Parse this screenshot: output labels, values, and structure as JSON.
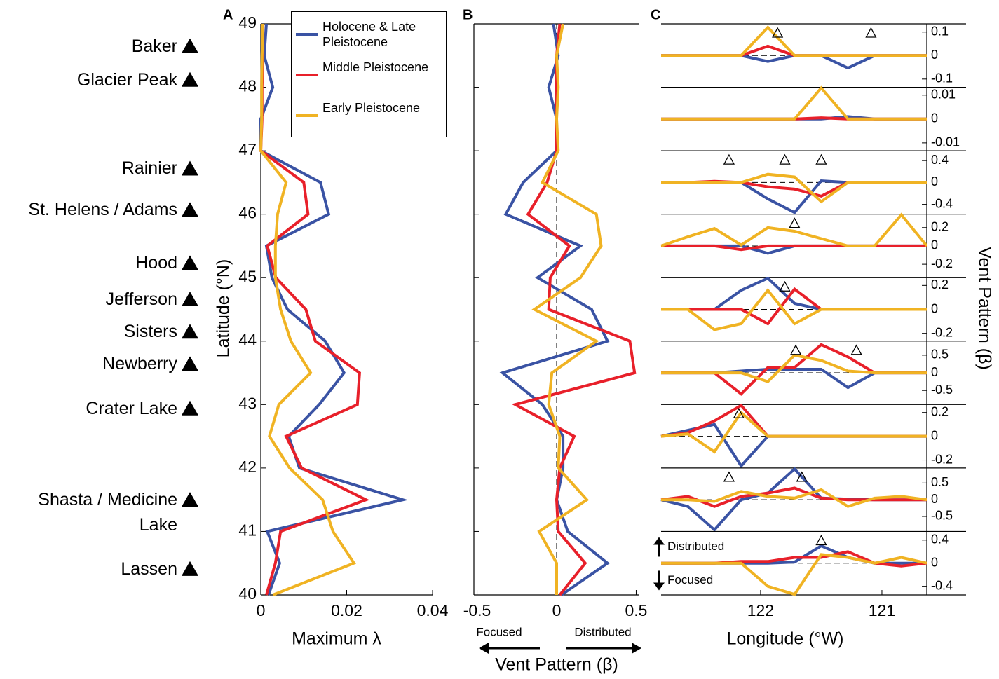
{
  "chart_data": [
    {
      "panel": "A",
      "type": "line",
      "orientation": "horizontal",
      "xlabel": "Maximum λ",
      "ylabel": "Latitude (°N)",
      "y": [
        49,
        48.5,
        48,
        47.5,
        47,
        46.5,
        46,
        45.5,
        45,
        44.5,
        44,
        43.5,
        43,
        42.5,
        42,
        41.5,
        41,
        40.5,
        40
      ],
      "xlim": [
        0,
        0.04
      ],
      "xticks": [
        0,
        0.02,
        0.04
      ],
      "ylim": [
        40,
        49
      ],
      "yticks": [
        40,
        41,
        42,
        43,
        44,
        45,
        46,
        47,
        48,
        49
      ],
      "legend": "upper right",
      "series": [
        {
          "name": "Holocene & Late Pleistocene",
          "color": "#3a53a4",
          "values": [
            0.0013,
            0.0008,
            0.0028,
            0,
            0,
            0.0139,
            0.0158,
            0.0013,
            0.0026,
            0.0062,
            0.015,
            0.0194,
            0.0136,
            0.0065,
            0.009,
            0.0331,
            0.0015,
            0.0044,
            0.0018
          ]
        },
        {
          "name": "Middle Pleistocene",
          "color": "#e8202a",
          "values": [
            0.0005,
            0.0005,
            0.0003,
            0.0003,
            0,
            0.01,
            0.011,
            0.0015,
            0.0035,
            0.0105,
            0.0127,
            0.023,
            0.0225,
            0.0059,
            0.0095,
            0.0245,
            0.0046,
            0.0034,
            0.0013
          ]
        },
        {
          "name": "Early Pleistocene",
          "color": "#f0b323",
          "values": [
            0.0005,
            0.0003,
            0.0002,
            0.0002,
            0,
            0.0059,
            0.0039,
            0.0034,
            0.0034,
            0.0046,
            0.007,
            0.0116,
            0.0042,
            0.002,
            0.0067,
            0.0144,
            0.0168,
            0.0217,
            0.0028
          ]
        }
      ],
      "annotations": [
        {
          "text": "Baker",
          "y": 48.65
        },
        {
          "text": "Glacier Peak",
          "y": 48.12
        },
        {
          "text": "Rainier",
          "y": 46.72
        },
        {
          "text": "St. Helens / Adams",
          "y": 46.07
        },
        {
          "text": "Hood",
          "y": 45.23
        },
        {
          "text": "Jefferson",
          "y": 44.66
        },
        {
          "text": "Sisters",
          "y": 44.15
        },
        {
          "text": "Newberry",
          "y": 43.64
        },
        {
          "text": "Crater Lake",
          "y": 42.94
        },
        {
          "text": "Shasta / Medicine Lake",
          "y": 41.5
        },
        {
          "text": "Lassen",
          "y": 40.41
        }
      ]
    },
    {
      "panel": "B",
      "type": "line",
      "orientation": "horizontal",
      "xlabel": "Vent Pattern (β)",
      "y": [
        49,
        48.5,
        48,
        47.5,
        47,
        46.5,
        46,
        45.5,
        45,
        44.5,
        44,
        43.5,
        43,
        42.5,
        42,
        41.5,
        41,
        40.5,
        40
      ],
      "xlim": [
        -0.52,
        0.52
      ],
      "xticks": [
        -0.5,
        0,
        0.5
      ],
      "ylim": [
        40,
        49
      ],
      "yticks": [
        40,
        41,
        42,
        43,
        44,
        45,
        46,
        47,
        48,
        49
      ],
      "ytick_labels": false,
      "zero_line": true,
      "series": [
        {
          "color": "#3a53a4",
          "values": [
            -0.02,
            0.01,
            -0.05,
            0,
            0,
            -0.21,
            -0.32,
            0.15,
            -0.12,
            0.22,
            0.32,
            -0.34,
            -0.09,
            0.04,
            0.04,
            0,
            0.07,
            0.32,
            0.03
          ]
        },
        {
          "color": "#e8202a",
          "values": [
            0.02,
            0,
            0,
            0,
            0,
            -0.06,
            -0.18,
            0.08,
            -0.04,
            -0.05,
            0.46,
            0.49,
            -0.26,
            0.11,
            0.02,
            0,
            0.01,
            0.18,
            0.02
          ]
        },
        {
          "color": "#f0b323",
          "values": [
            0.04,
            0,
            0.01,
            0,
            0.01,
            -0.09,
            0.25,
            0.28,
            0.15,
            -0.14,
            0.25,
            -0.03,
            -0.05,
            0.02,
            0.01,
            0.19,
            -0.11,
            0,
            0
          ]
        }
      ],
      "arrows": [
        {
          "text": "Focused",
          "direction": "left"
        },
        {
          "text": "Distributed",
          "direction": "right"
        }
      ]
    },
    {
      "panel": "C",
      "type": "line",
      "xlabel": "Longitude (°W)",
      "ylabel": "Vent Pattern (β)",
      "x": [
        122.82,
        122.6,
        122.38,
        122.16,
        121.94,
        121.72,
        121.5,
        121.28,
        121.06,
        120.84,
        120.63
      ],
      "xlim": [
        122.82,
        120.63
      ],
      "xticks": [
        122,
        121
      ],
      "zero_line": true,
      "arrows": [
        {
          "text": "Distributed",
          "direction": "up"
        },
        {
          "text": "Focused",
          "direction": "down"
        }
      ],
      "subplots": [
        {
          "ylim": [
            -0.135,
            0.135
          ],
          "yticks": [
            -0.1,
            0,
            0.1
          ],
          "markers": [
            121.86,
            121.09
          ],
          "series": [
            {
              "color": "#3a53a4",
              "values": [
                0,
                0,
                0,
                0,
                -0.025,
                0,
                0,
                -0.053,
                0,
                0,
                0
              ]
            },
            {
              "color": "#e8202a",
              "values": [
                0,
                0,
                0,
                0,
                0.04,
                0,
                0,
                0,
                0,
                0,
                0
              ]
            },
            {
              "color": "#f0b323",
              "values": [
                0,
                0,
                0,
                0,
                0.12,
                0,
                0,
                0,
                0,
                0,
                0
              ]
            }
          ]
        },
        {
          "ylim": [
            -0.0133,
            0.0133
          ],
          "yticks": [
            -0.01,
            0,
            0.01
          ],
          "markers": [],
          "series": [
            {
              "color": "#3a53a4",
              "values": [
                0,
                0,
                0,
                0,
                0,
                0,
                0,
                0.001,
                0,
                0,
                0
              ]
            },
            {
              "color": "#e8202a",
              "values": [
                0,
                0,
                0,
                0,
                0,
                0,
                0.0005,
                0,
                0,
                0,
                0
              ]
            },
            {
              "color": "#f0b323",
              "values": [
                0,
                0,
                0,
                0,
                0,
                0,
                0.013,
                0,
                0,
                0,
                0
              ]
            }
          ]
        },
        {
          "ylim": [
            -0.58,
            0.58
          ],
          "yticks": [
            -0.4,
            0,
            0.4
          ],
          "markers": [
            122.26,
            121.8,
            121.5
          ],
          "series": [
            {
              "color": "#3a53a4",
              "values": [
                0,
                0,
                0,
                0,
                -0.3,
                -0.55,
                0.03,
                0,
                0,
                0,
                0
              ]
            },
            {
              "color": "#e8202a",
              "values": [
                0,
                0,
                0.02,
                0,
                -0.08,
                -0.12,
                -0.25,
                0,
                0,
                0,
                0
              ]
            },
            {
              "color": "#f0b323",
              "values": [
                0,
                0,
                0,
                0,
                0.15,
                0.1,
                -0.35,
                0,
                0,
                0,
                0
              ]
            }
          ]
        },
        {
          "ylim": [
            -0.346,
            0.346
          ],
          "yticks": [
            -0.2,
            0,
            0.2
          ],
          "markers": [
            121.72
          ],
          "series": [
            {
              "color": "#3a53a4",
              "values": [
                0,
                0,
                0,
                0,
                -0.08,
                0,
                0,
                0,
                0,
                0,
                0
              ]
            },
            {
              "color": "#e8202a",
              "values": [
                0,
                0,
                0,
                -0.04,
                0,
                0,
                0,
                0,
                0,
                0,
                0
              ]
            },
            {
              "color": "#f0b323",
              "values": [
                0,
                0.1,
                0.19,
                0.01,
                0.2,
                0.16,
                0.08,
                0,
                0,
                0.34,
                0
              ]
            }
          ]
        },
        {
          "ylim": [
            -0.265,
            0.265
          ],
          "yticks": [
            -0.2,
            0,
            0.2
          ],
          "markers": [
            121.8
          ],
          "series": [
            {
              "color": "#3a53a4",
              "values": [
                0,
                0,
                0,
                0.16,
                0.26,
                0.05,
                0,
                0,
                0,
                0,
                0
              ]
            },
            {
              "color": "#e8202a",
              "values": [
                0,
                0,
                0,
                0,
                -0.12,
                0.17,
                0,
                0,
                0,
                0,
                0
              ]
            },
            {
              "color": "#f0b323",
              "values": [
                0,
                0,
                -0.17,
                -0.12,
                0.16,
                -0.12,
                0,
                0,
                0,
                0,
                0
              ]
            }
          ]
        },
        {
          "ylim": [
            -0.9,
            0.9
          ],
          "yticks": [
            -0.5,
            0,
            0.5
          ],
          "markers": [
            121.71,
            121.21
          ],
          "series": [
            {
              "color": "#3a53a4",
              "values": [
                0,
                0,
                0,
                0.05,
                0.1,
                0.1,
                0.1,
                -0.42,
                0,
                0,
                0
              ]
            },
            {
              "color": "#e8202a",
              "values": [
                0,
                0,
                0,
                -0.6,
                0.15,
                0.15,
                0.8,
                0.45,
                0,
                0,
                0
              ]
            },
            {
              "color": "#f0b323",
              "values": [
                0,
                0,
                0,
                0,
                -0.25,
                0.5,
                0.35,
                0.05,
                0,
                0,
                0
              ]
            }
          ]
        },
        {
          "ylim": [
            -0.267,
            0.267
          ],
          "yticks": [
            -0.2,
            0,
            0.2
          ],
          "markers": [
            122.18
          ],
          "series": [
            {
              "color": "#3a53a4",
              "values": [
                0,
                0.05,
                0.1,
                -0.25,
                0,
                0,
                0,
                0,
                0,
                0,
                0
              ]
            },
            {
              "color": "#e8202a",
              "values": [
                0,
                0.03,
                0.13,
                0.26,
                0,
                0,
                0,
                0,
                0,
                0,
                0
              ]
            },
            {
              "color": "#f0b323",
              "values": [
                0,
                0.02,
                -0.13,
                0.2,
                0,
                0,
                0,
                0,
                0,
                0,
                0
              ]
            }
          ]
        },
        {
          "ylim": [
            -0.95,
            0.95
          ],
          "yticks": [
            -0.5,
            0,
            0.5
          ],
          "markers": [
            122.26,
            121.66
          ],
          "series": [
            {
              "color": "#3a53a4",
              "values": [
                0,
                -0.2,
                -0.9,
                0,
                0.2,
                0.92,
                0.05,
                0.02,
                0,
                0,
                0
              ]
            },
            {
              "color": "#e8202a",
              "values": [
                0,
                0.1,
                -0.2,
                0.1,
                0.2,
                0.35,
                0.05,
                0,
                0,
                0,
                0
              ]
            },
            {
              "color": "#f0b323",
              "values": [
                0,
                0,
                -0.05,
                0.25,
                0.1,
                0.05,
                0.3,
                -0.2,
                0.05,
                0.1,
                0
              ]
            }
          ]
        },
        {
          "ylim": [
            -0.55,
            0.55
          ],
          "yticks": [
            -0.4,
            0,
            0.4
          ],
          "markers": [
            121.5
          ],
          "series": [
            {
              "color": "#3a53a4",
              "values": [
                0,
                0,
                0,
                0,
                0,
                0.02,
                0.3,
                0.1,
                0,
                0,
                0
              ]
            },
            {
              "color": "#e8202a",
              "values": [
                0,
                0,
                0,
                0.03,
                0.03,
                0.1,
                0.1,
                0.2,
                0,
                -0.05,
                0
              ]
            },
            {
              "color": "#f0b323",
              "values": [
                0,
                0,
                0,
                0,
                -0.4,
                -0.54,
                0.15,
                0.1,
                0,
                0.1,
                0
              ]
            }
          ]
        }
      ]
    }
  ]
}
